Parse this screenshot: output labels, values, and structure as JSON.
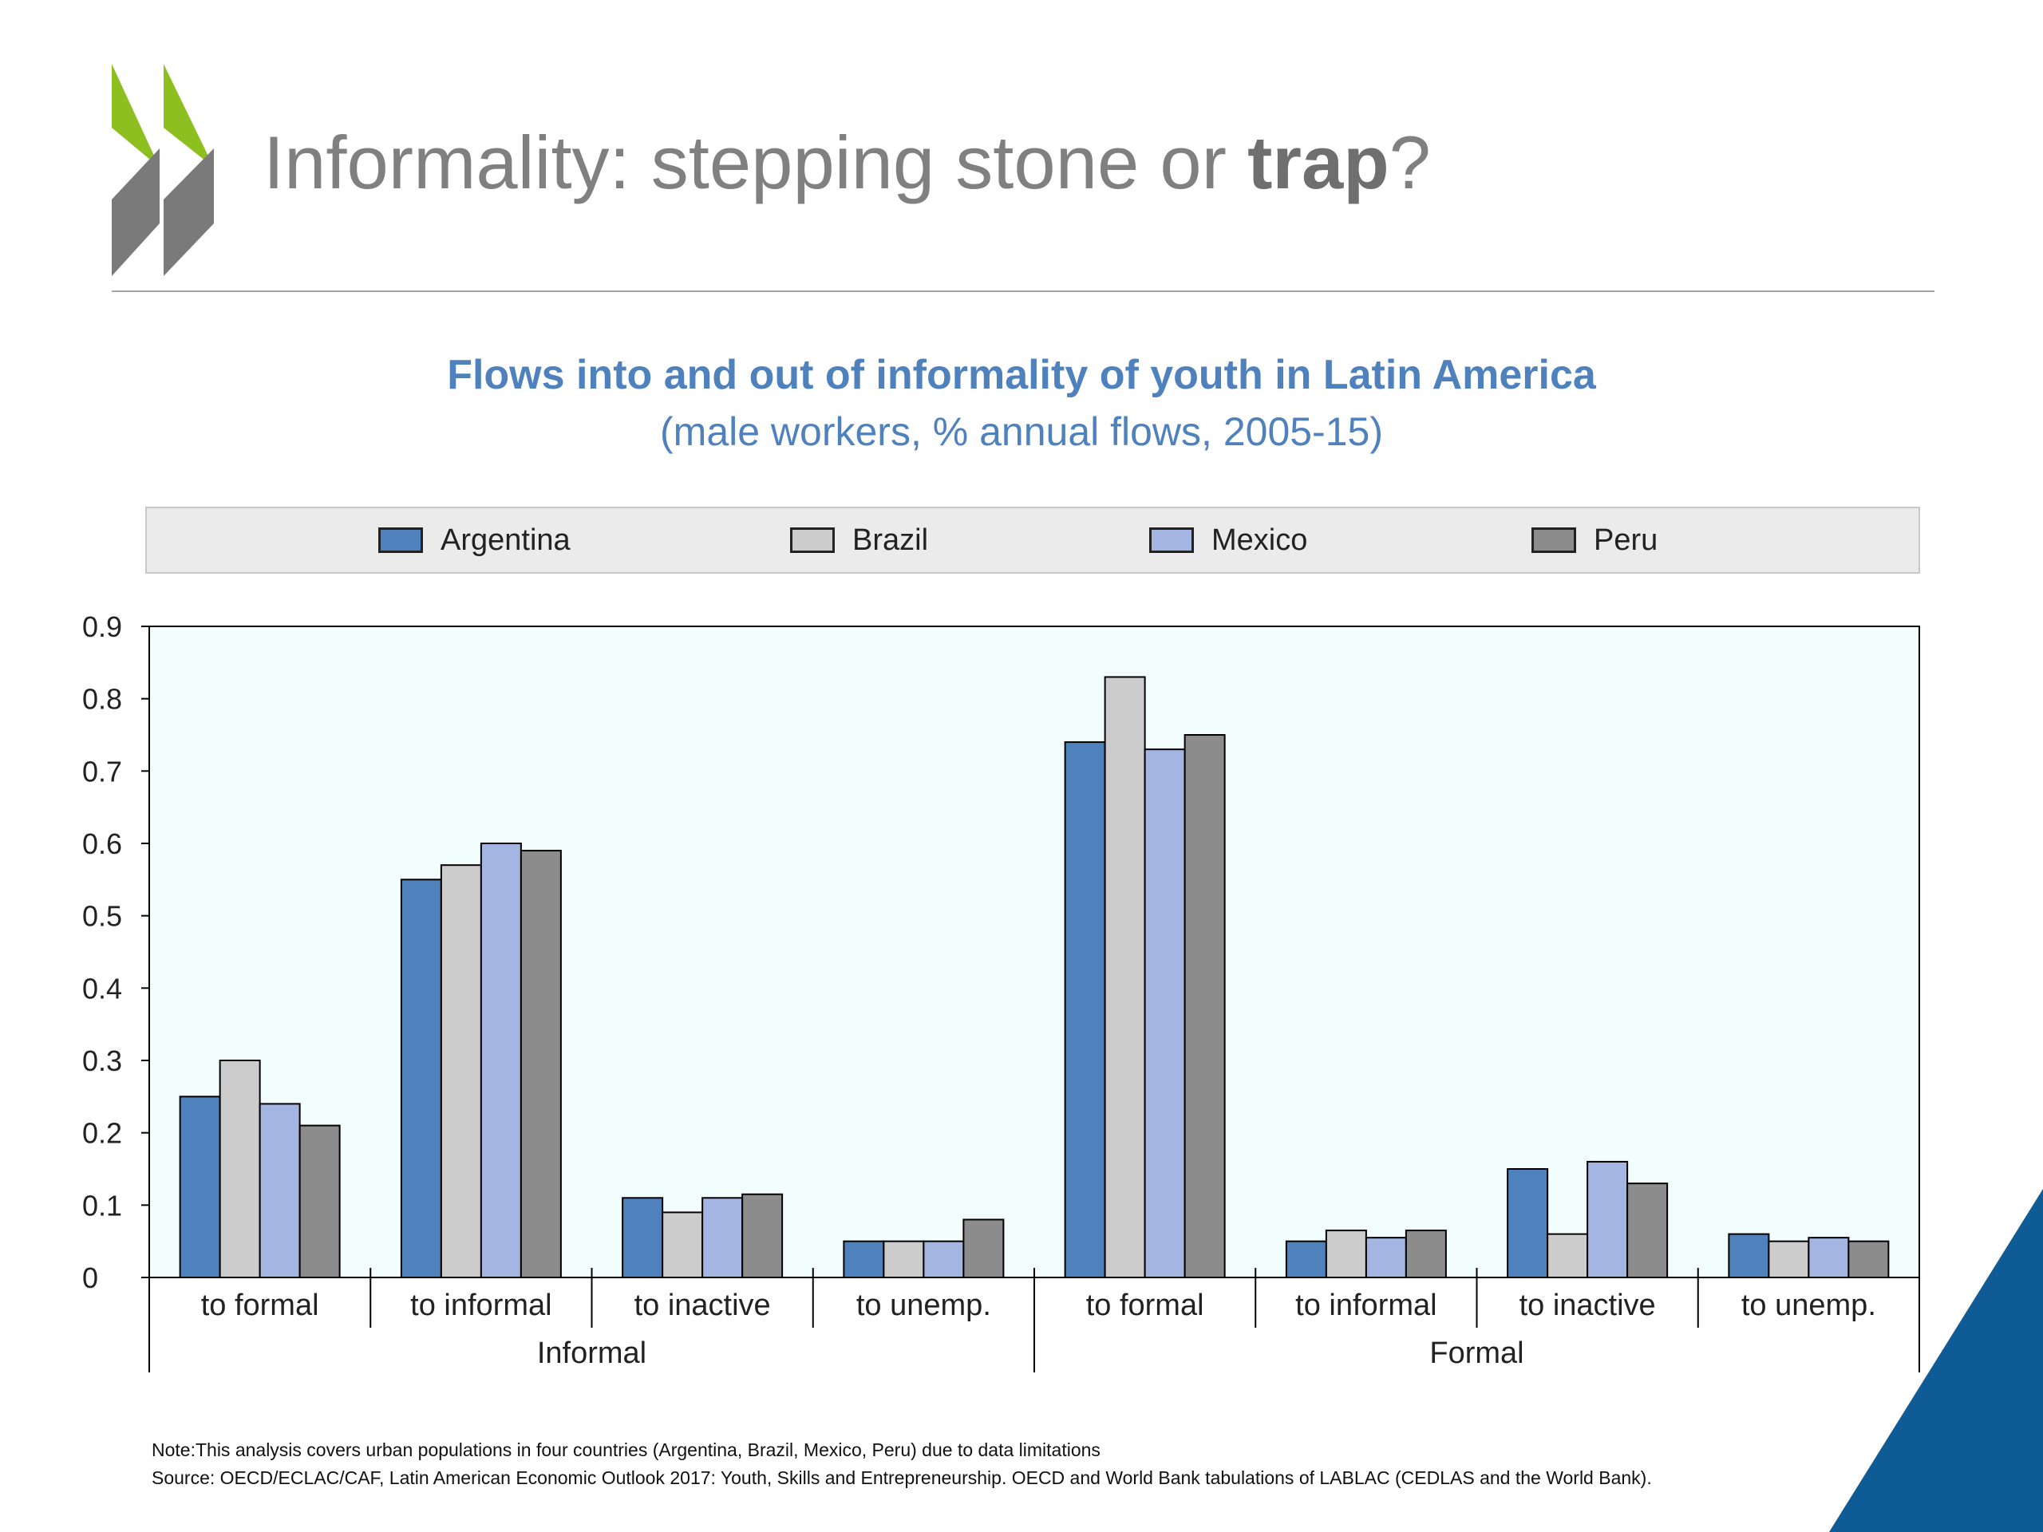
{
  "slide": {
    "title_prefix": "Informality: stepping stone or ",
    "title_bold": "trap",
    "title_suffix": "?"
  },
  "colors": {
    "logo_green": "#8cbf1f",
    "logo_grey": "#7a7a7a",
    "title_blue": "#4f81bd",
    "plot_bg": "#f2fdfd",
    "corner_blue": "#0f5b96"
  },
  "icons": {
    "logo": "oecd-chevrons-logo",
    "corner": "corner-triangle-decoration"
  },
  "chart_data": {
    "type": "bar",
    "title": "Flows into and out of informality of youth in Latin America",
    "subtitle": "(male workers, % annual flows, 2005-15)",
    "legend_position": "top",
    "grid": false,
    "ylim": [
      0,
      0.9
    ],
    "yticks": [
      "0",
      "0.1",
      "0.2",
      "0.3",
      "0.4",
      "0.5",
      "0.6",
      "0.7",
      "0.8",
      "0.9"
    ],
    "categories": [
      "to formal",
      "to informal",
      "to inactive",
      "to unemp.",
      "to formal",
      "to informal",
      "to inactive",
      "to unemp."
    ],
    "groups": [
      {
        "label": "Informal",
        "span": 4
      },
      {
        "label": "Formal",
        "span": 4
      }
    ],
    "series": [
      {
        "name": "Argentina",
        "color": "#4f81bd",
        "values": [
          0.25,
          0.55,
          0.11,
          0.05,
          0.74,
          0.05,
          0.15,
          0.06
        ]
      },
      {
        "name": "Brazil",
        "color": "#cccccc",
        "values": [
          0.3,
          0.57,
          0.09,
          0.05,
          0.83,
          0.065,
          0.06,
          0.05
        ]
      },
      {
        "name": "Mexico",
        "color": "#a5b5e2",
        "values": [
          0.24,
          0.6,
          0.11,
          0.05,
          0.73,
          0.055,
          0.16,
          0.055
        ]
      },
      {
        "name": "Peru",
        "color": "#8c8c8c",
        "values": [
          0.21,
          0.59,
          0.115,
          0.08,
          0.75,
          0.065,
          0.13,
          0.05
        ]
      }
    ]
  },
  "notes": {
    "note": "Note:This analysis covers urban populations in four countries (Argentina, Brazil, Mexico, Peru) due to data limitations",
    "source": "Source: OECD/ECLAC/CAF, Latin American Economic Outlook 2017: Youth, Skills and Entrepreneurship. OECD and World Bank tabulations of LABLAC (CEDLAS and the World Bank)."
  }
}
